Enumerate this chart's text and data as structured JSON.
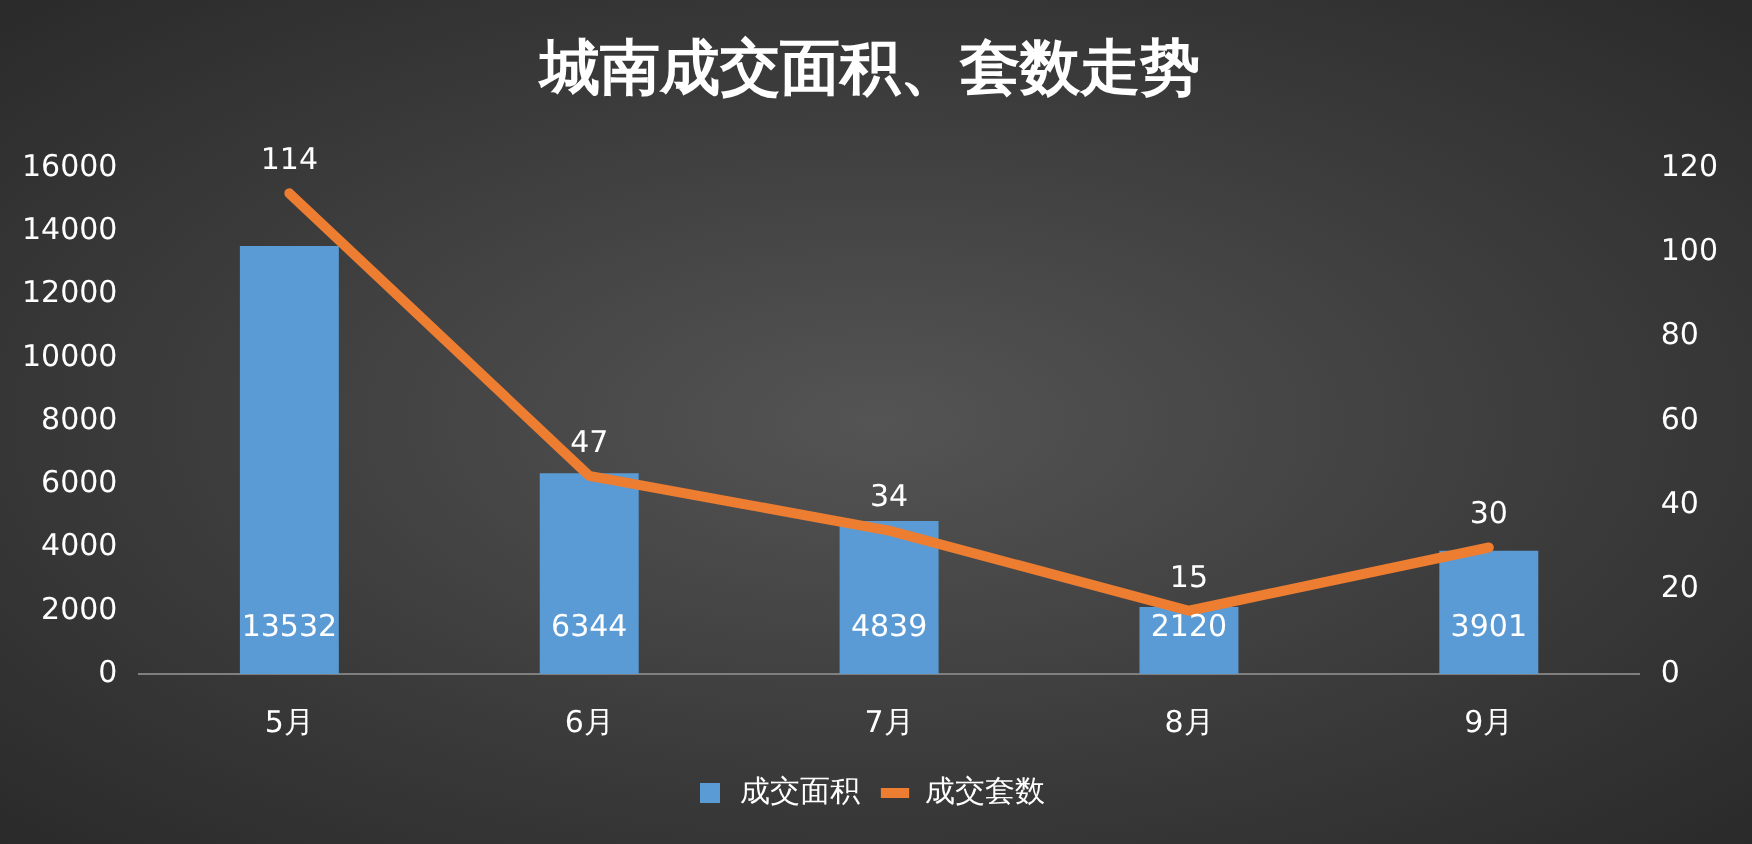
{
  "chart_data": {
    "type": "bar",
    "title": "城南成交面积、套数走势",
    "categories": [
      "5月",
      "6月",
      "7月",
      "8月",
      "9月"
    ],
    "series": [
      {
        "name": "成交面积",
        "color": "#5b9bd5",
        "values": [
          13532,
          6344,
          4839,
          2120,
          3901
        ]
      },
      {
        "name": "成交套数",
        "type": "line",
        "axis": "y2",
        "color": "#ed7d31",
        "values": [
          114,
          47,
          34,
          15,
          30
        ]
      }
    ],
    "ylim": [
      0,
      16000
    ],
    "yticks": [
      0,
      2000,
      4000,
      6000,
      8000,
      10000,
      12000,
      14000,
      16000
    ],
    "y2lim": [
      0,
      120
    ],
    "y2ticks": [
      0,
      20,
      40,
      60,
      80,
      100,
      120
    ],
    "data_labels": true,
    "legend": "bottom",
    "grid": false,
    "marker": "none"
  }
}
